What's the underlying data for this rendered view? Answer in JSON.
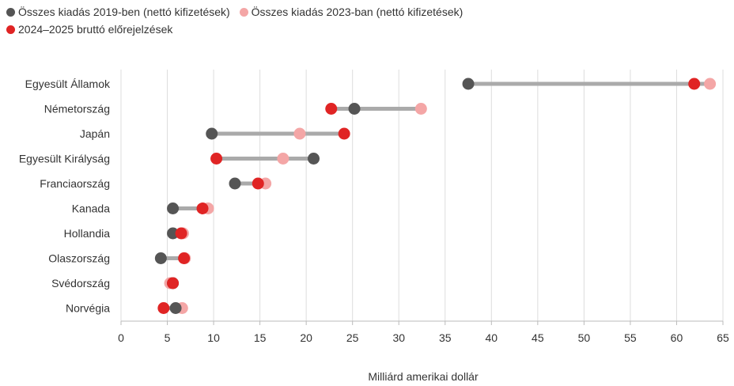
{
  "legend": {
    "items": [
      {
        "label": "Összes kiadás 2019-ben (nettó kifizetések)",
        "color": "#555555"
      },
      {
        "label": "Összes kiadás 2023-ban (nettó kifizetések)",
        "color": "#f4a6a6"
      },
      {
        "label": "2024–2025 bruttó előrejelzések",
        "color": "#e02424"
      }
    ]
  },
  "chart_data": {
    "type": "dumbbell",
    "xlabel": "Milliárd amerikai dollár",
    "xlim": [
      0,
      65
    ],
    "xticks": [
      0,
      5,
      10,
      15,
      20,
      25,
      30,
      35,
      40,
      45,
      50,
      55,
      60,
      65
    ],
    "grid": true,
    "legend_position": "top-left",
    "categories": [
      "Egyesült Államok",
      "Németország",
      "Japán",
      "Egyesült Királyság",
      "Franciaország",
      "Kanada",
      "Hollandia",
      "Olaszország",
      "Svédország",
      "Norvégia"
    ],
    "series": [
      {
        "name": "Összes kiadás 2019-ben (nettó kifizetések)",
        "color": "#555555",
        "values": [
          37.5,
          25.2,
          9.8,
          20.8,
          12.3,
          5.6,
          5.6,
          4.3,
          5.6,
          5.9
        ]
      },
      {
        "name": "Összes kiadás 2023-ban (nettó kifizetések)",
        "color": "#f4a6a6",
        "values": [
          63.6,
          32.4,
          19.3,
          17.5,
          15.6,
          9.4,
          6.7,
          6.9,
          5.3,
          6.6
        ]
      },
      {
        "name": "2024–2025 bruttó előrejelzések",
        "color": "#e02424",
        "values": [
          61.9,
          22.7,
          24.1,
          10.3,
          14.8,
          8.8,
          6.5,
          6.8,
          5.6,
          4.6
        ]
      }
    ]
  }
}
